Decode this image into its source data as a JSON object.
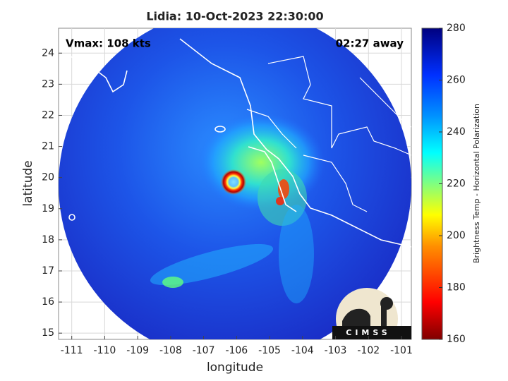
{
  "chart_data": {
    "type": "map",
    "title": "Lidia: 10-Oct-2023 22:30:00",
    "annotation_left": "Vmax: 108 kts",
    "annotation_right": "02:27 away",
    "xlabel": "longitude",
    "ylabel": "latitude",
    "xlim": [
      -111.4,
      -100.7
    ],
    "ylim": [
      14.8,
      24.8
    ],
    "xticks": [
      -111,
      -110,
      -109,
      -108,
      -107,
      -106,
      -105,
      -104,
      -103,
      -102,
      -101
    ],
    "yticks": [
      15,
      16,
      17,
      18,
      19,
      20,
      21,
      22,
      23,
      24
    ],
    "grid": true,
    "colorbar": {
      "label": "Brightness Temp - Horizontal Polarization",
      "lim": [
        160,
        280
      ],
      "ticks": [
        160,
        180,
        200,
        220,
        240,
        260,
        280
      ]
    },
    "logo": "CIMSS"
  }
}
